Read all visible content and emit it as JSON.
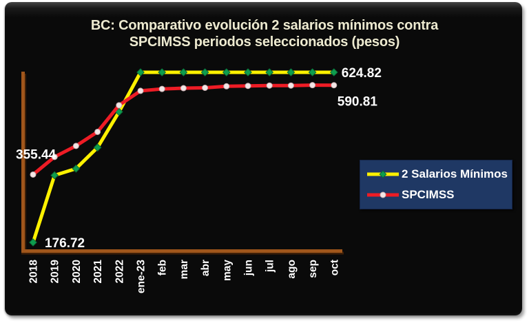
{
  "window": {
    "background_color": "#ffffff",
    "panel_color": "#0a0a0a"
  },
  "header": {
    "title_line1": "BC: Comparativo evolución 2 salarios mínimos contra",
    "title_line2": "SPCIMSS periodos seleccionados (pesos)",
    "title_color": "#EDEAD0"
  },
  "legend": {
    "background": "#1F3864",
    "text_color": "#ffffff",
    "entries": [
      {
        "label": "2 Salarios Mínimos",
        "line_color": "#FFF100",
        "marker": "diamond",
        "marker_color": "#0E9D4E",
        "marker_edge": "#0A6B38"
      },
      {
        "label": "SPCIMSS",
        "line_color": "#EE1C25",
        "marker": "circle",
        "marker_color": "#F2E6E6",
        "marker_edge": "#C9AFB2"
      }
    ]
  },
  "chart_data": {
    "type": "line",
    "title": "BC: Comparativo evolución 2 salarios mínimos contra SPCIMSS periodos seleccionados (pesos)",
    "xlabel": "",
    "ylabel": "",
    "ylim": [
      150,
      635
    ],
    "grid": false,
    "legend_position": "right-middle",
    "axis_color": "#A0561B",
    "axis_shadow_color": "#3d1f08",
    "label_color": "#FFFFFF",
    "categories": [
      "2018",
      "2019",
      "2020",
      "2021",
      "2022",
      "ene-23",
      "feb",
      "mar",
      "abr",
      "may",
      "jun",
      "jul",
      "ago",
      "sep",
      "oct"
    ],
    "series": [
      {
        "name": "2 Salarios Mínimos",
        "color": "#FFF100",
        "marker": "diamond",
        "marker_color": "#0E9D4E",
        "marker_edge": "#0A6B38",
        "values": [
          176.72,
          353.44,
          371.12,
          426.78,
          520.68,
          624.82,
          624.82,
          624.82,
          624.82,
          624.82,
          624.82,
          624.82,
          624.82,
          624.82,
          624.82
        ]
      },
      {
        "name": "SPCIMSS",
        "color": "#EE1C25",
        "marker": "circle",
        "marker_color": "#F2E6E6",
        "marker_edge": "#C9AFB2",
        "values": [
          355.44,
          402,
          431,
          468,
          538,
          576,
          581,
          583,
          584,
          588,
          589,
          590,
          590,
          591,
          590.81
        ]
      }
    ],
    "point_labels": [
      {
        "text": "176.72",
        "series": 0,
        "index": 0
      },
      {
        "text": "355.44",
        "series": 1,
        "index": 0
      },
      {
        "text": "624.82",
        "series": 0,
        "index": 14
      },
      {
        "text": "590.81",
        "series": 1,
        "index": 14
      }
    ]
  }
}
